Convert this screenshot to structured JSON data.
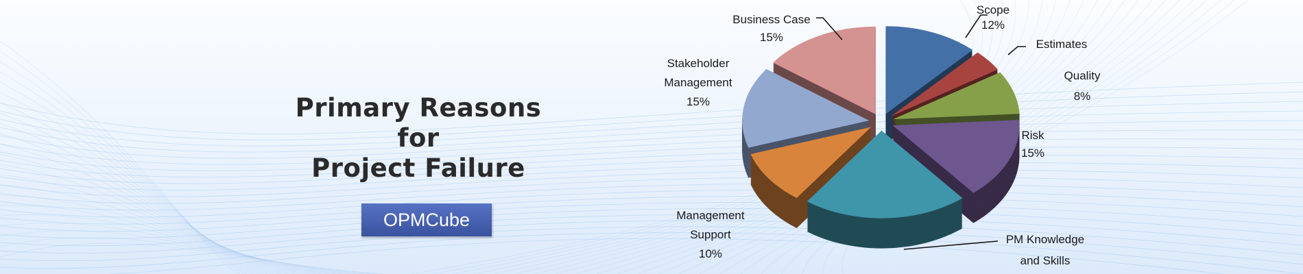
{
  "title": {
    "line1": "Primary Reasons",
    "line2": "for",
    "line3": "Project Failure"
  },
  "brand_button": {
    "label": "OPMCube"
  },
  "chart_data": {
    "type": "pie",
    "style": "3d-exploded",
    "slices": [
      {
        "name": "Scope",
        "label_lines": [
          "Scope",
          "12%"
        ],
        "value": 12,
        "color": "#4470a8"
      },
      {
        "name": "Estimates",
        "label_lines": [
          "Estimates"
        ],
        "value": 4,
        "color": "#a84440"
      },
      {
        "name": "Quality",
        "label_lines": [
          "Quality",
          "8%"
        ],
        "value": 8,
        "color": "#86a04a"
      },
      {
        "name": "Risk",
        "label_lines": [
          "Risk",
          "15%"
        ],
        "value": 15,
        "color": "#6e568e"
      },
      {
        "name": "PM Knowledge and Skills",
        "label_lines": [
          "PM Knowledge",
          "and Skills"
        ],
        "value": 21,
        "color": "#3f95aa"
      },
      {
        "name": "Management Support",
        "label_lines": [
          "Management",
          "Support",
          "10%"
        ],
        "value": 10,
        "color": "#d9843c"
      },
      {
        "name": "Stakeholder Management",
        "label_lines": [
          "Stakeholder",
          "Management",
          "15%"
        ],
        "value": 15,
        "color": "#93a8cf"
      },
      {
        "name": "Business Case",
        "label_lines": [
          "Business Case",
          "15%"
        ],
        "value": 15,
        "color": "#d49290"
      }
    ]
  }
}
